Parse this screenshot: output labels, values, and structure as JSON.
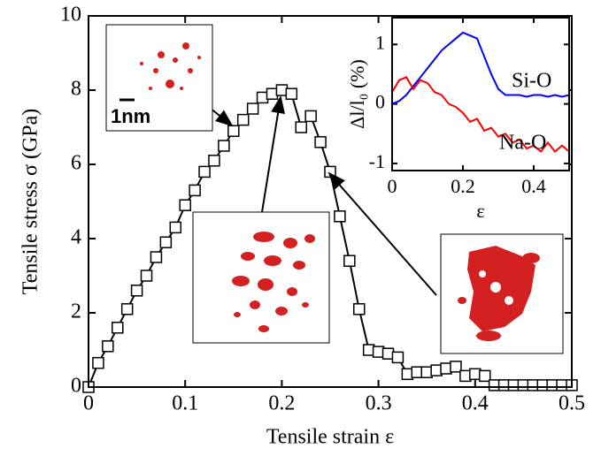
{
  "chart_data": [
    {
      "type": "line",
      "x_label": "Tensile strain ε",
      "y_label": "Tensile stress σ (GPa)",
      "x": [
        0,
        0.01,
        0.02,
        0.03,
        0.04,
        0.05,
        0.06,
        0.07,
        0.08,
        0.09,
        0.1,
        0.11,
        0.12,
        0.13,
        0.14,
        0.15,
        0.16,
        0.17,
        0.18,
        0.19,
        0.2,
        0.21,
        0.22,
        0.23,
        0.24,
        0.25,
        0.26,
        0.27,
        0.28,
        0.29,
        0.3,
        0.31,
        0.32,
        0.33,
        0.34,
        0.35,
        0.36,
        0.37,
        0.38,
        0.39,
        0.4,
        0.41,
        0.42,
        0.43,
        0.44,
        0.45,
        0.46,
        0.47,
        0.48,
        0.49,
        0.5
      ],
      "values": [
        0,
        0.65,
        1.1,
        1.6,
        2.1,
        2.6,
        3.0,
        3.5,
        3.9,
        4.3,
        4.9,
        5.3,
        5.8,
        6.1,
        6.5,
        6.9,
        7.2,
        7.5,
        7.8,
        7.9,
        8.0,
        7.9,
        7.0,
        7.3,
        6.6,
        5.8,
        4.6,
        3.4,
        2.1,
        1.0,
        0.95,
        0.9,
        0.8,
        0.35,
        0.4,
        0.4,
        0.45,
        0.5,
        0.55,
        0.3,
        0.35,
        0.3,
        0.05,
        0.05,
        0.05,
        0.05,
        0.05,
        0.05,
        0.05,
        0.05,
        0.05
      ],
      "color": "#000000",
      "marker": "square",
      "xlim": [
        0,
        0.5
      ],
      "xticks": [
        0,
        0.1,
        0.2,
        0.3,
        0.4,
        0.5
      ],
      "ylim": [
        0,
        10
      ],
      "yticks": [
        0,
        2,
        4,
        6,
        8,
        10
      ],
      "annotation": "1nm"
    },
    {
      "type": "line",
      "x_label": "ε",
      "y_label": "Δl/l₀ (%)",
      "x": [
        0,
        0.02,
        0.04,
        0.06,
        0.08,
        0.1,
        0.12,
        0.14,
        0.16,
        0.18,
        0.2,
        0.22,
        0.24,
        0.26,
        0.28,
        0.3,
        0.32,
        0.34,
        0.36,
        0.38,
        0.4,
        0.42,
        0.44,
        0.46,
        0.48,
        0.5
      ],
      "series": [
        {
          "name": "Si-O",
          "color": "#0000ff",
          "values": [
            0,
            0.05,
            0.15,
            0.3,
            0.45,
            0.6,
            0.75,
            0.9,
            1.0,
            1.1,
            1.2,
            1.15,
            1.1,
            0.8,
            0.5,
            0.25,
            0.15,
            0.15,
            0.15,
            0.12,
            0.15,
            0.15,
            0.12,
            0.15,
            0.12,
            0.15
          ]
        },
        {
          "name": "Na-O",
          "color": "#ff0000",
          "values": [
            0.2,
            0.4,
            0.45,
            0.25,
            0.4,
            0.35,
            0.2,
            0.15,
            0.0,
            -0.05,
            -0.15,
            -0.3,
            -0.25,
            -0.45,
            -0.4,
            -0.55,
            -0.5,
            -0.65,
            -0.6,
            -0.75,
            -0.7,
            -0.8,
            -0.65,
            -0.8,
            -0.7,
            -0.8
          ]
        }
      ],
      "xlim": [
        0,
        0.5
      ],
      "xticks": [
        0,
        0.2,
        0.4
      ],
      "ylim": [
        -1.12,
        1.45
      ],
      "yticks": [
        -1,
        0,
        1
      ]
    }
  ]
}
